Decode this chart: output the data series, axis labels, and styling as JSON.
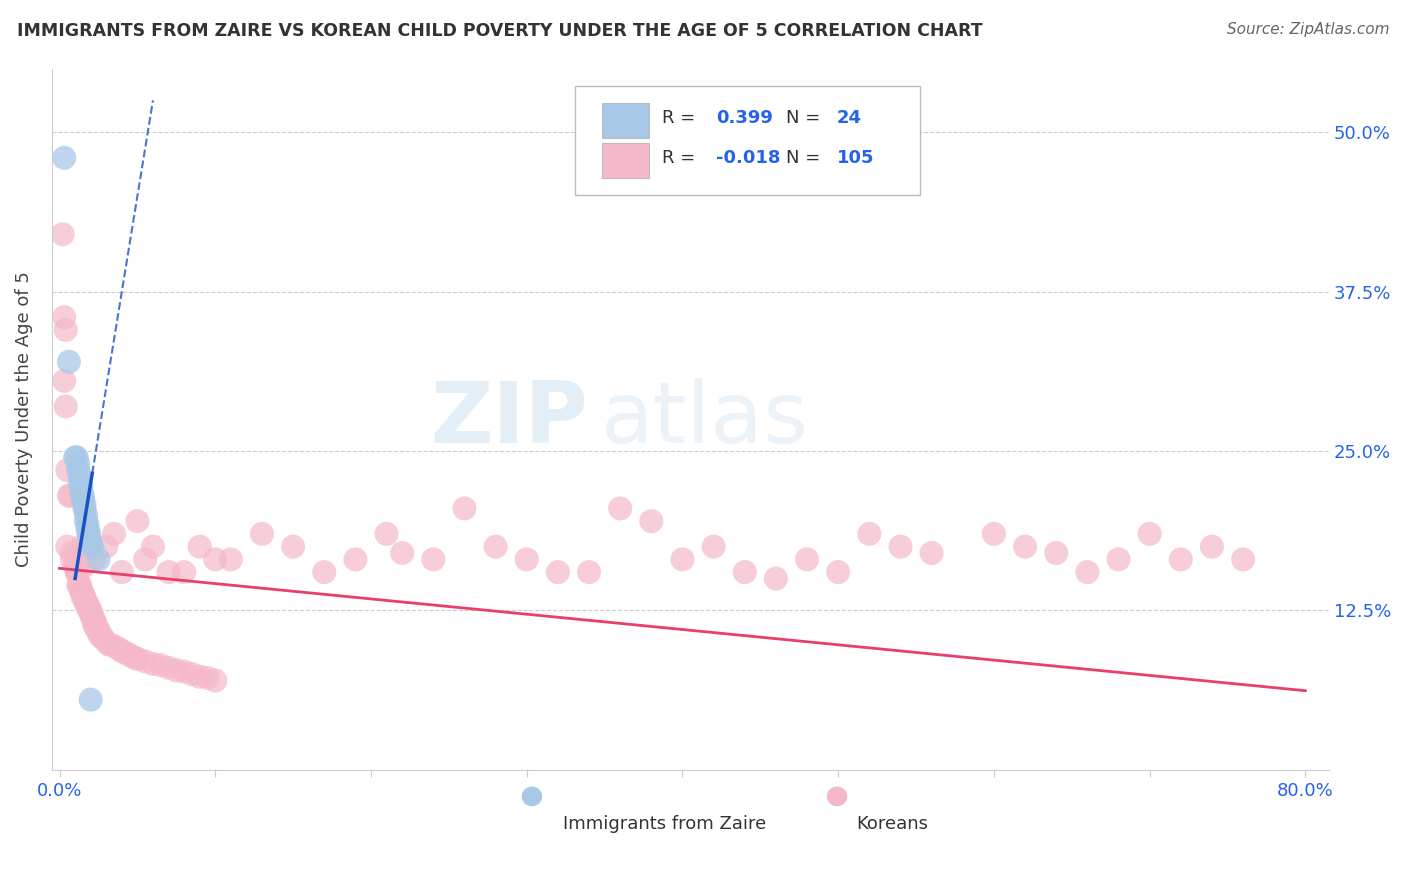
{
  "title": "IMMIGRANTS FROM ZAIRE VS KOREAN CHILD POVERTY UNDER THE AGE OF 5 CORRELATION CHART",
  "source": "Source: ZipAtlas.com",
  "ylabel": "Child Poverty Under the Age of 5",
  "xlim": [
    0.0,
    0.8
  ],
  "ylim": [
    0.0,
    0.55
  ],
  "ytick_positions": [
    0.125,
    0.25,
    0.375,
    0.5
  ],
  "ytick_labels": [
    "12.5%",
    "25.0%",
    "37.5%",
    "50.0%"
  ],
  "blue_color": "#a8c8e8",
  "pink_color": "#f5b8c8",
  "trend_blue": "#1a52c4",
  "trend_pink": "#e8406a",
  "zaire_points": [
    [
      0.003,
      0.48
    ],
    [
      0.006,
      0.32
    ],
    [
      0.01,
      0.245
    ],
    [
      0.011,
      0.245
    ],
    [
      0.012,
      0.24
    ],
    [
      0.012,
      0.235
    ],
    [
      0.013,
      0.23
    ],
    [
      0.013,
      0.225
    ],
    [
      0.014,
      0.222
    ],
    [
      0.014,
      0.218
    ],
    [
      0.015,
      0.215
    ],
    [
      0.015,
      0.212
    ],
    [
      0.016,
      0.208
    ],
    [
      0.016,
      0.205
    ],
    [
      0.017,
      0.2
    ],
    [
      0.017,
      0.195
    ],
    [
      0.018,
      0.192
    ],
    [
      0.018,
      0.188
    ],
    [
      0.019,
      0.185
    ],
    [
      0.019,
      0.182
    ],
    [
      0.02,
      0.178
    ],
    [
      0.021,
      0.175
    ],
    [
      0.025,
      0.165
    ],
    [
      0.02,
      0.055
    ]
  ],
  "korean_points": [
    [
      0.002,
      0.42
    ],
    [
      0.003,
      0.355
    ],
    [
      0.003,
      0.305
    ],
    [
      0.004,
      0.345
    ],
    [
      0.004,
      0.285
    ],
    [
      0.005,
      0.235
    ],
    [
      0.006,
      0.215
    ],
    [
      0.007,
      0.215
    ],
    [
      0.005,
      0.175
    ],
    [
      0.008,
      0.17
    ],
    [
      0.008,
      0.165
    ],
    [
      0.01,
      0.16
    ],
    [
      0.011,
      0.155
    ],
    [
      0.011,
      0.155
    ],
    [
      0.012,
      0.155
    ],
    [
      0.012,
      0.145
    ],
    [
      0.013,
      0.145
    ],
    [
      0.013,
      0.145
    ],
    [
      0.014,
      0.14
    ],
    [
      0.014,
      0.14
    ],
    [
      0.015,
      0.138
    ],
    [
      0.015,
      0.135
    ],
    [
      0.016,
      0.135
    ],
    [
      0.016,
      0.135
    ],
    [
      0.017,
      0.13
    ],
    [
      0.018,
      0.13
    ],
    [
      0.018,
      0.128
    ],
    [
      0.019,
      0.125
    ],
    [
      0.02,
      0.125
    ],
    [
      0.02,
      0.123
    ],
    [
      0.021,
      0.12
    ],
    [
      0.021,
      0.12
    ],
    [
      0.022,
      0.118
    ],
    [
      0.022,
      0.115
    ],
    [
      0.023,
      0.115
    ],
    [
      0.023,
      0.112
    ],
    [
      0.024,
      0.11
    ],
    [
      0.025,
      0.11
    ],
    [
      0.025,
      0.108
    ],
    [
      0.026,
      0.105
    ],
    [
      0.027,
      0.105
    ],
    [
      0.028,
      0.103
    ],
    [
      0.03,
      0.1
    ],
    [
      0.032,
      0.098
    ],
    [
      0.035,
      0.097
    ],
    [
      0.038,
      0.095
    ],
    [
      0.04,
      0.093
    ],
    [
      0.042,
      0.092
    ],
    [
      0.045,
      0.09
    ],
    [
      0.048,
      0.088
    ],
    [
      0.05,
      0.087
    ],
    [
      0.055,
      0.085
    ],
    [
      0.06,
      0.083
    ],
    [
      0.065,
      0.082
    ],
    [
      0.07,
      0.08
    ],
    [
      0.075,
      0.078
    ],
    [
      0.08,
      0.077
    ],
    [
      0.085,
      0.075
    ],
    [
      0.09,
      0.073
    ],
    [
      0.095,
      0.072
    ],
    [
      0.1,
      0.07
    ],
    [
      0.014,
      0.175
    ],
    [
      0.016,
      0.16
    ],
    [
      0.022,
      0.165
    ],
    [
      0.03,
      0.175
    ],
    [
      0.035,
      0.185
    ],
    [
      0.04,
      0.155
    ],
    [
      0.05,
      0.195
    ],
    [
      0.055,
      0.165
    ],
    [
      0.06,
      0.175
    ],
    [
      0.07,
      0.155
    ],
    [
      0.08,
      0.155
    ],
    [
      0.09,
      0.175
    ],
    [
      0.1,
      0.165
    ],
    [
      0.11,
      0.165
    ],
    [
      0.13,
      0.185
    ],
    [
      0.15,
      0.175
    ],
    [
      0.17,
      0.155
    ],
    [
      0.19,
      0.165
    ],
    [
      0.21,
      0.185
    ],
    [
      0.22,
      0.17
    ],
    [
      0.24,
      0.165
    ],
    [
      0.26,
      0.205
    ],
    [
      0.28,
      0.175
    ],
    [
      0.3,
      0.165
    ],
    [
      0.32,
      0.155
    ],
    [
      0.34,
      0.155
    ],
    [
      0.36,
      0.205
    ],
    [
      0.38,
      0.195
    ],
    [
      0.4,
      0.165
    ],
    [
      0.42,
      0.175
    ],
    [
      0.44,
      0.155
    ],
    [
      0.46,
      0.15
    ],
    [
      0.48,
      0.165
    ],
    [
      0.5,
      0.155
    ],
    [
      0.52,
      0.185
    ],
    [
      0.54,
      0.175
    ],
    [
      0.56,
      0.17
    ],
    [
      0.6,
      0.185
    ],
    [
      0.62,
      0.175
    ],
    [
      0.64,
      0.17
    ],
    [
      0.66,
      0.155
    ],
    [
      0.68,
      0.165
    ],
    [
      0.7,
      0.185
    ],
    [
      0.72,
      0.165
    ],
    [
      0.74,
      0.175
    ],
    [
      0.76,
      0.165
    ]
  ]
}
